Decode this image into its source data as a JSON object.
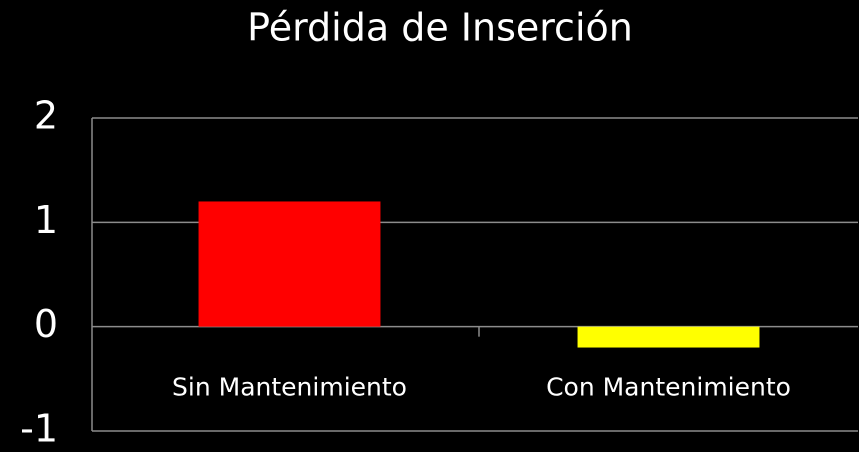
{
  "chart_data": {
    "type": "bar",
    "title": "Pérdida de Inserción",
    "categories": [
      "Sin Mantenimiento",
      "Con Mantenimiento"
    ],
    "values": [
      1.2,
      -0.2
    ],
    "colors": [
      "#ff0000",
      "#ffff00"
    ],
    "ylim": [
      -1,
      2
    ],
    "yticks": [
      -1,
      0,
      1,
      2
    ],
    "grid": true
  }
}
